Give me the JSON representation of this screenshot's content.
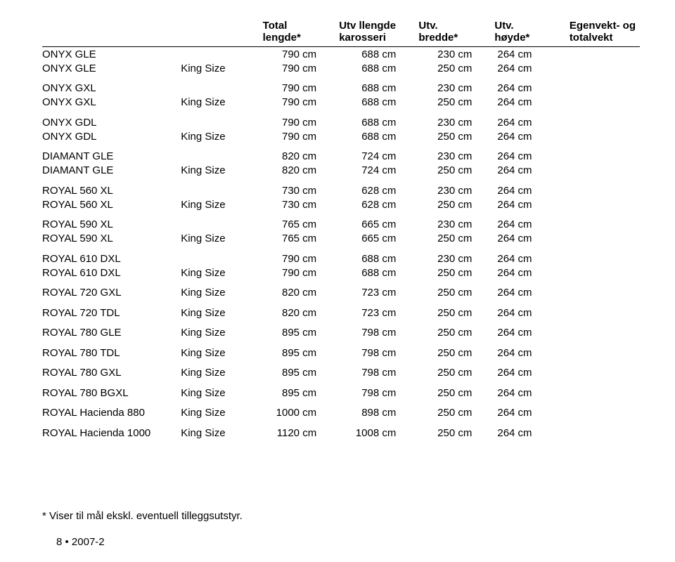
{
  "headers": {
    "col1": "",
    "col2": "",
    "col3_line1": "Total",
    "col3_line2": "lengde*",
    "col4_line1": "Utv llengde",
    "col4_line2": "karosseri",
    "col5_line1": "Utv.",
    "col5_line2": "bredde*",
    "col6_line1": "Utv.",
    "col6_line2": "høyde*",
    "col7_line1": "Egenvekt- og",
    "col7_line2": "totalvekt"
  },
  "rows": [
    {
      "model": "ONYX GLE",
      "variant": "",
      "c1": "790 cm",
      "c2": "688 cm",
      "c3": "230 cm",
      "c4": "264 cm",
      "gap": false
    },
    {
      "model": "ONYX GLE",
      "variant": "King Size",
      "c1": "790 cm",
      "c2": "688 cm",
      "c3": "250 cm",
      "c4": "264 cm",
      "gap": false
    },
    {
      "model": "ONYX GXL",
      "variant": "",
      "c1": "790 cm",
      "c2": "688 cm",
      "c3": "230 cm",
      "c4": "264 cm",
      "gap": true
    },
    {
      "model": "ONYX GXL",
      "variant": "King Size",
      "c1": "790 cm",
      "c2": "688 cm",
      "c3": "250 cm",
      "c4": "264 cm",
      "gap": false
    },
    {
      "model": "ONYX GDL",
      "variant": "",
      "c1": "790 cm",
      "c2": "688 cm",
      "c3": "230 cm",
      "c4": "264 cm",
      "gap": true
    },
    {
      "model": "ONYX GDL",
      "variant": "King Size",
      "c1": "790 cm",
      "c2": "688 cm",
      "c3": "250 cm",
      "c4": "264 cm",
      "gap": false
    },
    {
      "model": "DIAMANT GLE",
      "variant": "",
      "c1": "820 cm",
      "c2": "724 cm",
      "c3": "230 cm",
      "c4": "264 cm",
      "gap": true
    },
    {
      "model": "DIAMANT GLE",
      "variant": "King Size",
      "c1": "820 cm",
      "c2": "724 cm",
      "c3": "250 cm",
      "c4": "264 cm",
      "gap": false
    },
    {
      "model": "ROYAL 560 XL",
      "variant": "",
      "c1": "730 cm",
      "c2": "628 cm",
      "c3": "230 cm",
      "c4": "264 cm",
      "gap": true
    },
    {
      "model": "ROYAL 560 XL",
      "variant": "King Size",
      "c1": "730 cm",
      "c2": "628 cm",
      "c3": "250 cm",
      "c4": "264 cm",
      "gap": false
    },
    {
      "model": "ROYAL 590 XL",
      "variant": "",
      "c1": "765 cm",
      "c2": "665 cm",
      "c3": "230 cm",
      "c4": "264 cm",
      "gap": true
    },
    {
      "model": "ROYAL 590 XL",
      "variant": "King Size",
      "c1": "765 cm",
      "c2": "665 cm",
      "c3": "250 cm",
      "c4": "264 cm",
      "gap": false
    },
    {
      "model": "ROYAL 610 DXL",
      "variant": "",
      "c1": "790 cm",
      "c2": "688 cm",
      "c3": "230 cm",
      "c4": "264 cm",
      "gap": true
    },
    {
      "model": "ROYAL 610 DXL",
      "variant": "King Size",
      "c1": "790 cm",
      "c2": "688 cm",
      "c3": "250 cm",
      "c4": "264 cm",
      "gap": false
    },
    {
      "model": "ROYAL 720 GXL",
      "variant": "King Size",
      "c1": "820 cm",
      "c2": "723 cm",
      "c3": "250 cm",
      "c4": "264 cm",
      "gap": true
    },
    {
      "model": "ROYAL 720 TDL",
      "variant": "King Size",
      "c1": "820 cm",
      "c2": "723 cm",
      "c3": "250 cm",
      "c4": "264 cm",
      "gap": true
    },
    {
      "model": "ROYAL 780 GLE",
      "variant": "King Size",
      "c1": "895 cm",
      "c2": "798 cm",
      "c3": "250 cm",
      "c4": "264 cm",
      "gap": true
    },
    {
      "model": "ROYAL 780 TDL",
      "variant": "King Size",
      "c1": "895 cm",
      "c2": "798 cm",
      "c3": "250 cm",
      "c4": "264 cm",
      "gap": true
    },
    {
      "model": "ROYAL 780 GXL",
      "variant": "King Size",
      "c1": "895 cm",
      "c2": "798 cm",
      "c3": "250 cm",
      "c4": "264 cm",
      "gap": true
    },
    {
      "model": "ROYAL 780 BGXL",
      "variant": "King Size",
      "c1": "895 cm",
      "c2": "798 cm",
      "c3": "250 cm",
      "c4": "264 cm",
      "gap": true
    },
    {
      "model": "ROYAL Hacienda 880",
      "variant": "King Size",
      "c1": "1000 cm",
      "c2": "898 cm",
      "c3": "250 cm",
      "c4": "264 cm",
      "gap": true
    },
    {
      "model": "ROYAL Hacienda 1000",
      "variant": "King Size",
      "c1": "1120 cm",
      "c2": "1008 cm",
      "c3": "250 cm",
      "c4": "264 cm",
      "gap": true
    }
  ],
  "footnote": "* Viser til mål ekskl. eventuell tilleggsutstyr.",
  "pagenum": "8 • 2007-2"
}
